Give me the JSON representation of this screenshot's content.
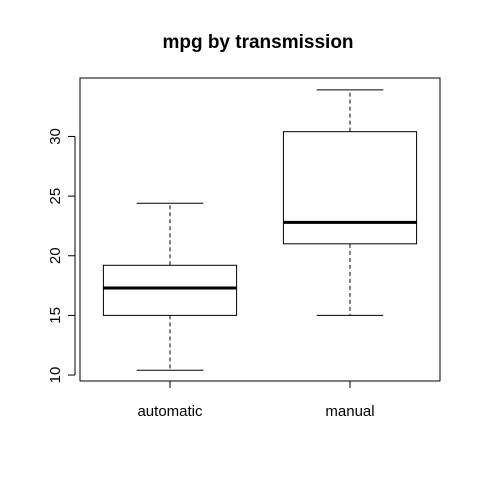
{
  "chart_data": {
    "type": "boxplot",
    "title": "mpg by transmission",
    "xlabel": "",
    "ylabel": "",
    "ylim": [
      9.5,
      34.9
    ],
    "yticks": [
      10,
      15,
      20,
      25,
      30
    ],
    "grid": false,
    "categories": [
      "automatic",
      "manual"
    ],
    "boxes": [
      {
        "category": "automatic",
        "min": 10.4,
        "q1": 15.0,
        "median": 17.3,
        "q3": 19.2,
        "max": 24.4
      },
      {
        "category": "manual",
        "min": 15.0,
        "q1": 21.0,
        "median": 22.8,
        "q3": 30.4,
        "max": 33.9
      }
    ]
  }
}
